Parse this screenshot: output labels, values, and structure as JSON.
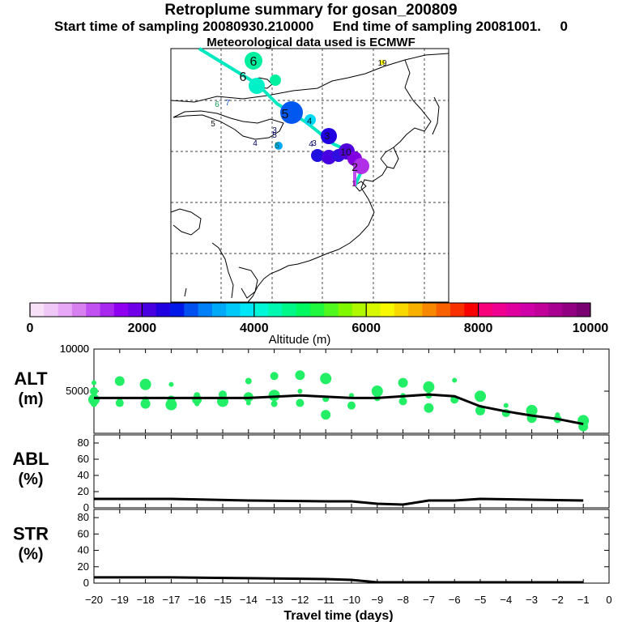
{
  "figure": {
    "title_line1": "Retroplume summary for gosan_200809",
    "title_line2": "Start time of sampling 20080930.210000     End time of sampling 20081001.     0",
    "title_line3": "Meteorological data used is ECMWF"
  },
  "map": {
    "labels": [
      {
        "text": "6",
        "color": "#111111",
        "role": "track"
      },
      {
        "text": "6",
        "color": "#111111",
        "role": "bubble"
      },
      {
        "text": "5",
        "color": "#111111",
        "role": "bubble"
      },
      {
        "text": "4",
        "color": "#111111",
        "role": "bubble"
      },
      {
        "text": "3",
        "color": "#111111",
        "role": "bubble"
      },
      {
        "text": "2",
        "color": "#111111",
        "role": "bubble"
      },
      {
        "text": "10",
        "color": "#111111",
        "role": "bubble"
      },
      {
        "text": "19",
        "color": "#111111",
        "role": "cluster"
      },
      {
        "text": "6",
        "color": "#119955",
        "role": "cluster"
      },
      {
        "text": "7",
        "color": "#1155cc",
        "role": "cluster"
      },
      {
        "text": "5",
        "color": "#111111",
        "role": "cluster"
      },
      {
        "text": "5",
        "color": "#0a6b3a",
        "role": "cluster"
      },
      {
        "text": "4",
        "color": "#000066",
        "role": "cluster"
      },
      {
        "text": "3",
        "color": "#000066",
        "role": "cluster"
      },
      {
        "text": "3",
        "color": "#000066",
        "role": "cluster"
      },
      {
        "text": "4",
        "color": "#000066",
        "role": "cluster"
      },
      {
        "text": "5",
        "color": "#000066",
        "role": "cluster"
      },
      {
        "text": "1",
        "color": "#660066",
        "role": "cluster"
      }
    ]
  },
  "colorbar": {
    "label": "Altitude (m)",
    "range": [
      0,
      10000
    ],
    "ticks": [
      "0",
      "2000",
      "4000",
      "6000",
      "8000",
      "10000"
    ],
    "colors": [
      "#f8e0f8",
      "#f0c8f8",
      "#e8a8f8",
      "#d880f0",
      "#c050f0",
      "#a828f0",
      "#9000f0",
      "#7000e8",
      "#4800e0",
      "#2000e0",
      "#0018e8",
      "#0050f0",
      "#0080f8",
      "#00a8f8",
      "#00c8f8",
      "#00e8f8",
      "#00f8d8",
      "#00f8b0",
      "#00f888",
      "#00f860",
      "#20f840",
      "#50f820",
      "#80f800",
      "#b0f800",
      "#d8f800",
      "#f8f800",
      "#f8d800",
      "#f8b000",
      "#f88800",
      "#f86000",
      "#f83000",
      "#f80000",
      "#f8007a",
      "#f00090",
      "#e000a0",
      "#d000a8",
      "#c00098",
      "#a80090",
      "#900080",
      "#780070"
    ]
  },
  "chart_data": [
    {
      "type": "scatter",
      "name": "ALT",
      "ylabel": "ALT\n(m)",
      "ylim": [
        0,
        10000
      ],
      "yticks": [
        0,
        5000,
        10000
      ],
      "ytick_labels": [
        "",
        "5000",
        "10000"
      ],
      "xlim": [
        -20,
        0
      ],
      "scatter_color": "#22ee66",
      "scatter": [
        {
          "x": -20,
          "y": 6000
        },
        {
          "x": -20,
          "y": 5000
        },
        {
          "x": -20,
          "y": 4000
        },
        {
          "x": -20,
          "y": 3500
        },
        {
          "x": -19,
          "y": 6200
        },
        {
          "x": -19,
          "y": 4000
        },
        {
          "x": -19,
          "y": 3600
        },
        {
          "x": -18,
          "y": 5800
        },
        {
          "x": -18,
          "y": 4000
        },
        {
          "x": -18,
          "y": 3500
        },
        {
          "x": -17,
          "y": 5800
        },
        {
          "x": -17,
          "y": 4000
        },
        {
          "x": -17,
          "y": 3400
        },
        {
          "x": -16,
          "y": 4500
        },
        {
          "x": -16,
          "y": 4000
        },
        {
          "x": -16,
          "y": 3500
        },
        {
          "x": -15,
          "y": 4600
        },
        {
          "x": -15,
          "y": 3800
        },
        {
          "x": -14,
          "y": 6200
        },
        {
          "x": -14,
          "y": 4300
        },
        {
          "x": -14,
          "y": 3600
        },
        {
          "x": -13,
          "y": 6800
        },
        {
          "x": -13,
          "y": 4500
        },
        {
          "x": -13,
          "y": 3500
        },
        {
          "x": -12,
          "y": 6900
        },
        {
          "x": -12,
          "y": 5000
        },
        {
          "x": -12,
          "y": 3600
        },
        {
          "x": -11,
          "y": 6500
        },
        {
          "x": -11,
          "y": 4100
        },
        {
          "x": -11,
          "y": 2200
        },
        {
          "x": -10,
          "y": 4500
        },
        {
          "x": -10,
          "y": 3300
        },
        {
          "x": -9,
          "y": 5000
        },
        {
          "x": -9,
          "y": 4200
        },
        {
          "x": -8,
          "y": 6000
        },
        {
          "x": -8,
          "y": 4500
        },
        {
          "x": -8,
          "y": 3800
        },
        {
          "x": -7,
          "y": 5500
        },
        {
          "x": -7,
          "y": 4500
        },
        {
          "x": -7,
          "y": 3000
        },
        {
          "x": -6,
          "y": 6300
        },
        {
          "x": -6,
          "y": 4000
        },
        {
          "x": -5,
          "y": 4400
        },
        {
          "x": -5,
          "y": 3000
        },
        {
          "x": -5,
          "y": 2700
        },
        {
          "x": -4,
          "y": 3300
        },
        {
          "x": -4,
          "y": 2400
        },
        {
          "x": -3,
          "y": 2700
        },
        {
          "x": -3,
          "y": 2100
        },
        {
          "x": -3,
          "y": 1800
        },
        {
          "x": -2,
          "y": 2200
        },
        {
          "x": -2,
          "y": 1700
        },
        {
          "x": -1,
          "y": 1500
        },
        {
          "x": -1,
          "y": 1100
        },
        {
          "x": -1,
          "y": 800
        }
      ],
      "line": {
        "x": [
          -20,
          -18,
          -16,
          -14,
          -12,
          -10,
          -9,
          -7,
          -6,
          -5,
          -4,
          -3,
          -2,
          -1
        ],
        "y": [
          4200,
          4200,
          4200,
          4200,
          4500,
          4200,
          4200,
          4600,
          4400,
          3200,
          2600,
          2100,
          1700,
          1100
        ]
      }
    },
    {
      "type": "line",
      "name": "ABL",
      "ylabel": "ABL\n(%)",
      "ylim": [
        0,
        90
      ],
      "yticks": [
        0,
        20,
        40,
        60,
        80
      ],
      "ytick_labels": [
        "0",
        "20",
        "40",
        "60",
        "80"
      ],
      "xlim": [
        -20,
        0
      ],
      "line": {
        "x": [
          -20,
          -17,
          -14,
          -11,
          -10,
          -9,
          -8,
          -7,
          -6,
          -5,
          -3,
          -1
        ],
        "y": [
          11,
          11,
          9,
          8,
          8,
          5,
          4,
          9,
          9,
          11,
          10,
          9
        ]
      }
    },
    {
      "type": "line",
      "name": "STR",
      "ylabel": "STR\n(%)",
      "ylim": [
        0,
        90
      ],
      "yticks": [
        0,
        20,
        40,
        60,
        80
      ],
      "ytick_labels": [
        "0",
        "20",
        "40",
        "60",
        "80"
      ],
      "xlim": [
        -20,
        0
      ],
      "xlabel": "Travel time (days)",
      "xticks": [
        -20,
        -19,
        -18,
        -17,
        -16,
        -15,
        -14,
        -13,
        -12,
        -11,
        -10,
        -9,
        -8,
        -7,
        -6,
        -5,
        -4,
        -3,
        -2,
        -1,
        0
      ],
      "line": {
        "x": [
          -20,
          -17,
          -14,
          -11,
          -10,
          -9,
          -8,
          -7,
          -5,
          -3,
          -1
        ],
        "y": [
          7,
          7,
          6,
          5,
          4,
          1,
          1,
          1,
          1,
          1,
          1
        ]
      }
    }
  ]
}
